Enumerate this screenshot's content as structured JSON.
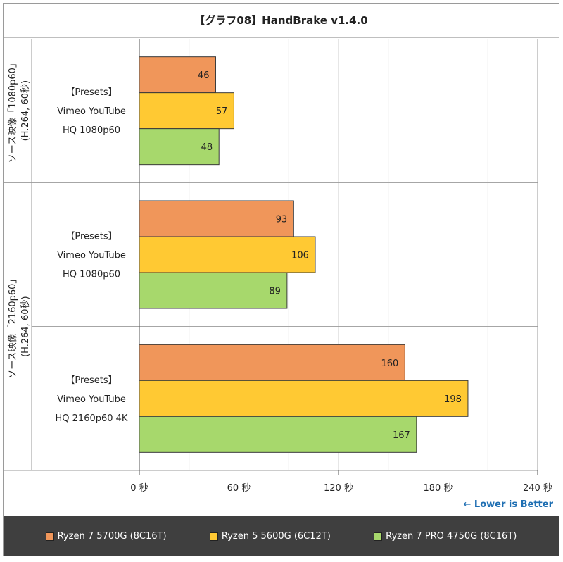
{
  "title": "【グラフ08】HandBrake v1.4.0",
  "lower_note": "← Lower is Better",
  "colors": {
    "series": [
      "#f0965a",
      "#ffc933",
      "#a7d86c"
    ],
    "border": "#3a3a3a",
    "grid": "#cccccc"
  },
  "chart_data": {
    "type": "bar",
    "orientation": "horizontal",
    "title": "【グラフ08】HandBrake v1.4.0",
    "xlim": [
      0,
      240
    ],
    "x_ticks": [
      "0 秒",
      "60 秒",
      "120 秒",
      "180 秒",
      "240 秒"
    ],
    "x_tick_values": [
      0,
      60,
      120,
      180,
      240
    ],
    "grid": true,
    "legend_position": "bottom",
    "groups": [
      {
        "label": "ソース映像「1080p60」",
        "sublabel": "(H.264, 60秒)"
      },
      {
        "label": "ソース映像「2160p60」",
        "sublabel": "(H.264, 60秒)"
      }
    ],
    "categories": [
      {
        "group": 0,
        "lines": [
          "【Presets】",
          "Vimeo YouTube",
          "HQ 1080p60"
        ]
      },
      {
        "group": 1,
        "lines": [
          "【Presets】",
          "Vimeo YouTube",
          "HQ 1080p60"
        ]
      },
      {
        "group": 1,
        "lines": [
          "【Presets】",
          "Vimeo YouTube",
          "HQ 2160p60 4K"
        ]
      }
    ],
    "series": [
      {
        "name": "Ryzen 7 5700G (8C16T)",
        "values": [
          46,
          93,
          160
        ]
      },
      {
        "name": "Ryzen 5 5600G (6C12T)",
        "values": [
          57,
          106,
          198
        ]
      },
      {
        "name": "Ryzen 7 PRO 4750G (8C16T)",
        "values": [
          48,
          89,
          167
        ]
      }
    ]
  }
}
